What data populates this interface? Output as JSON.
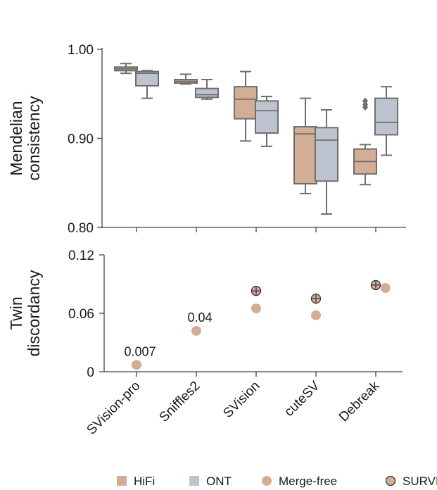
{
  "colors": {
    "hifi": "#d4ad97",
    "ont": "#bec4cf",
    "merge_free": "#d4ad97",
    "surv": "#d4ad97",
    "stroke": "#6e6e6e",
    "axis": "#444444"
  },
  "chart_data": [
    {
      "type": "box",
      "ylabel_lines": [
        "Mendelian",
        "consistency"
      ],
      "ylim": [
        0.8,
        1.0
      ],
      "yticks": [
        1.0,
        0.9,
        0.8
      ],
      "ytick_labels": [
        "1.00",
        "0.90",
        "0.80"
      ],
      "categories": [
        "SVision-pro",
        "Sniffles2",
        "SVision",
        "cuteSV",
        "Debreak"
      ],
      "series": [
        {
          "name": "HiFi",
          "boxes": [
            {
              "whisker_low": 0.973,
              "q1": 0.976,
              "median": 0.978,
              "q3": 0.98,
              "whisker_high": 0.984,
              "outliers": []
            },
            {
              "whisker_low": 0.961,
              "q1": 0.962,
              "median": 0.964,
              "q3": 0.966,
              "whisker_high": 0.972,
              "outliers": []
            },
            {
              "whisker_low": 0.897,
              "q1": 0.922,
              "median": 0.944,
              "q3": 0.958,
              "whisker_high": 0.975,
              "outliers": []
            },
            {
              "whisker_low": 0.838,
              "q1": 0.849,
              "median": 0.905,
              "q3": 0.913,
              "whisker_high": 0.945,
              "outliers": []
            },
            {
              "whisker_low": 0.848,
              "q1": 0.86,
              "median": 0.874,
              "q3": 0.888,
              "whisker_high": 0.893,
              "outliers": [
                0.935,
                0.938,
                0.942
              ]
            }
          ]
        },
        {
          "name": "ONT",
          "boxes": [
            {
              "whisker_low": 0.945,
              "q1": 0.959,
              "median": 0.973,
              "q3": 0.975,
              "whisker_high": 0.976,
              "outliers": []
            },
            {
              "whisker_low": 0.944,
              "q1": 0.946,
              "median": 0.949,
              "q3": 0.956,
              "whisker_high": 0.966,
              "outliers": []
            },
            {
              "whisker_low": 0.891,
              "q1": 0.906,
              "median": 0.931,
              "q3": 0.942,
              "whisker_high": 0.947,
              "outliers": []
            },
            {
              "whisker_low": 0.815,
              "q1": 0.852,
              "median": 0.898,
              "q3": 0.912,
              "whisker_high": 0.932,
              "outliers": []
            },
            {
              "whisker_low": 0.881,
              "q1": 0.904,
              "median": 0.918,
              "q3": 0.945,
              "whisker_high": 0.958,
              "outliers": []
            }
          ]
        }
      ]
    },
    {
      "type": "scatter",
      "ylabel_lines": [
        "Twin",
        "discordancy"
      ],
      "ylim": [
        0,
        0.12
      ],
      "yticks": [
        0.12,
        0.06,
        0
      ],
      "ytick_labels": [
        "0.12",
        "0.06",
        "0"
      ],
      "categories": [
        "SVision-pro",
        "Sniffles2",
        "SVision",
        "cuteSV",
        "Debreak"
      ],
      "series": [
        {
          "name": "Merge-free",
          "points": [
            {
              "category": "SVision-pro",
              "offset": 0,
              "value": 0.007
            },
            {
              "category": "Sniffles2",
              "offset": 0,
              "value": 0.042
            },
            {
              "category": "SVision",
              "offset": 0,
              "value": 0.065
            },
            {
              "category": "cuteSV",
              "offset": 0,
              "value": 0.058
            },
            {
              "category": "Debreak",
              "offset": 0.25,
              "value": 0.086
            }
          ]
        },
        {
          "name": "SURVIVOR",
          "points": [
            {
              "category": "SVision",
              "offset": 0,
              "value": 0.083
            },
            {
              "category": "cuteSV",
              "offset": 0,
              "value": 0.075
            },
            {
              "category": "Debreak",
              "offset": 0,
              "value": 0.089
            }
          ]
        }
      ],
      "annotations": [
        {
          "category": "SVision-pro",
          "value": 0.007,
          "text": "0.007"
        },
        {
          "category": "Sniffles2",
          "value": 0.042,
          "text": "0.04"
        }
      ]
    }
  ],
  "legend": [
    {
      "label": "HiFi",
      "shape": "square",
      "color_key": "hifi"
    },
    {
      "label": "ONT",
      "shape": "square",
      "color_key": "ont"
    },
    {
      "label": "Merge-free",
      "shape": "circle",
      "color_key": "merge_free"
    },
    {
      "label": "SURVIVOR",
      "shape": "circle-cross",
      "color_key": "surv"
    }
  ]
}
